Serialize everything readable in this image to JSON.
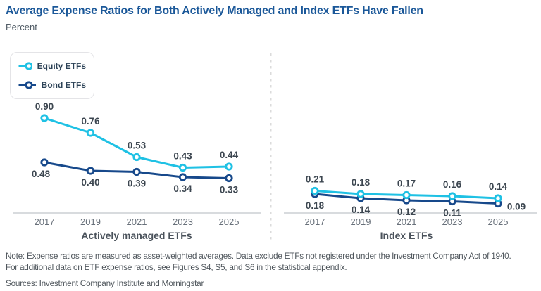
{
  "header": {
    "title": "Average Expense Ratios for Both Actively Managed and Index ETFs Have Fallen",
    "subtitle": "Percent"
  },
  "legend": {
    "items": [
      {
        "label": "Equity ETFs",
        "color": "#1FC1E4"
      },
      {
        "label": "Bond ETFs",
        "color": "#17498B"
      }
    ]
  },
  "chart_data": [
    {
      "type": "line",
      "panel": "left",
      "title": "Actively managed ETFs",
      "categories": [
        "2017",
        "2019",
        "2021",
        "2023",
        "2025"
      ],
      "series": [
        {
          "name": "Equity ETFs",
          "color": "#1FC1E4",
          "values": [
            0.9,
            0.76,
            0.53,
            0.43,
            0.44
          ],
          "label_position": "above"
        },
        {
          "name": "Bond ETFs",
          "color": "#17498B",
          "values": [
            0.48,
            0.4,
            0.39,
            0.34,
            0.33
          ],
          "label_position": "below"
        }
      ],
      "ylim": [
        0,
        1.0
      ],
      "grid": false,
      "data_labels": true,
      "label_offsets": {
        "1": {
          "0": {
            "dx": -5,
            "dy": 0
          }
        }
      }
    },
    {
      "type": "line",
      "panel": "right",
      "title": "Index ETFs",
      "categories": [
        "2017",
        "2019",
        "2021",
        "2023",
        "2025"
      ],
      "series": [
        {
          "name": "Equity ETFs",
          "color": "#1FC1E4",
          "values": [
            0.21,
            0.18,
            0.17,
            0.16,
            0.14
          ],
          "label_position": "above"
        },
        {
          "name": "Bond ETFs",
          "color": "#17498B",
          "values": [
            0.18,
            0.14,
            0.12,
            0.11,
            0.09
          ],
          "label_position": "below"
        }
      ],
      "ylim": [
        0,
        0.25
      ],
      "grid": false,
      "data_labels": true,
      "label_offsets": {
        "1": {
          "4": {
            "dx": 26,
            "dy": -12
          }
        }
      }
    }
  ],
  "notes": {
    "line1": "Note: Expense ratios are measured as asset-weighted averages. Data exclude ETFs not registered under the Investment Company Act of 1940.",
    "line2": "For additional data on ETF expense ratios, see Figures S4, S5, and S6 in the statistical appendix.",
    "sources": "Sources: Investment Company Institute and Morningstar"
  },
  "colors": {
    "title": "#1B5899",
    "data_label": "#3C4650",
    "year_label": "#68707A",
    "panel_title": "#4A525B",
    "axis_line": "#D8DBDE",
    "divider": "#DBDBDB"
  }
}
